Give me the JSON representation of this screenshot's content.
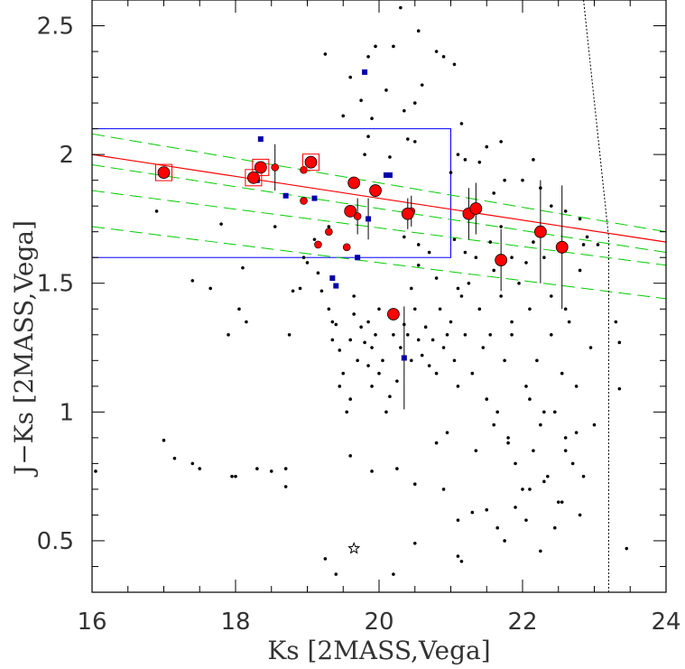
{
  "chart_data": {
    "type": "scatter",
    "title": "",
    "xlabel": "Ks [2MASS,Vega]",
    "ylabel": "J−Ks [2MASS,Vega]",
    "xlim": [
      16,
      24
    ],
    "ylim": [
      0.3,
      2.6
    ],
    "xticks": [
      16,
      18,
      20,
      22,
      24
    ],
    "xtick_labels": [
      "16",
      "18",
      "20",
      "22",
      "24"
    ],
    "yticks": [
      0.5,
      1,
      1.5,
      2,
      2.5
    ],
    "ytick_labels": [
      "0.5",
      "1",
      "1.5",
      "2",
      "2.5"
    ],
    "x_minor_step": 0.5,
    "y_minor_step": 0.1,
    "grid": false,
    "legend": "none",
    "colors": {
      "frame": "#000000",
      "field_points": "#000000",
      "red_points": "#ff0000",
      "blue_squares": "#0000aa",
      "highlight_boxes": "#ff0000",
      "selection_box": "#0000ff",
      "red_line": "#ff0000",
      "green_lines": "#00cc00",
      "limits": "#000000"
    },
    "selection_box": {
      "x0": 16,
      "x1": 21,
      "y0": 1.6,
      "y1": 2.1
    },
    "red_sequence_line": {
      "x": [
        16,
        24
      ],
      "y": [
        2.0,
        1.66
      ]
    },
    "green_dashed_lines": [
      {
        "x": [
          16,
          24
        ],
        "y": [
          2.08,
          1.7
        ]
      },
      {
        "x": [
          16,
          24
        ],
        "y": [
          1.96,
          1.62
        ]
      },
      {
        "x": [
          16,
          24
        ],
        "y": [
          1.86,
          1.57
        ]
      },
      {
        "x": [
          16,
          24
        ],
        "y": [
          1.72,
          1.44
        ]
      }
    ],
    "completeness_vertical_line": {
      "x": 23.2,
      "y": [
        0.3,
        1.68
      ]
    },
    "completeness_slanted_line": {
      "x": [
        22.85,
        23.2
      ],
      "y": [
        2.6,
        1.68
      ]
    },
    "star_marker": {
      "x": 19.65,
      "y": 0.47
    },
    "large_red_points": [
      {
        "x": 17.0,
        "y": 1.93,
        "boxed": true
      },
      {
        "x": 18.25,
        "y": 1.91,
        "boxed": true
      },
      {
        "x": 18.35,
        "y": 1.95,
        "boxed": true
      },
      {
        "x": 19.05,
        "y": 1.97,
        "boxed": true
      },
      {
        "x": 19.65,
        "y": 1.89,
        "boxed": false
      },
      {
        "x": 19.95,
        "y": 1.86,
        "boxed": false
      },
      {
        "x": 19.6,
        "y": 1.78,
        "boxed": false
      },
      {
        "x": 20.4,
        "y": 1.77,
        "boxed": false,
        "err": 0.06
      },
      {
        "x": 21.25,
        "y": 1.77,
        "boxed": false,
        "err": 0.1
      },
      {
        "x": 21.35,
        "y": 1.79,
        "boxed": false,
        "err": 0.1
      },
      {
        "x": 20.2,
        "y": 1.38,
        "boxed": false
      },
      {
        "x": 21.7,
        "y": 1.59,
        "boxed": false,
        "err": 0.12
      },
      {
        "x": 22.25,
        "y": 1.7,
        "boxed": false,
        "err": 0.2
      },
      {
        "x": 22.55,
        "y": 1.64,
        "boxed": false,
        "err": 0.24
      }
    ],
    "small_red_points": [
      {
        "x": 18.55,
        "y": 1.95,
        "err": 0.09
      },
      {
        "x": 18.95,
        "y": 1.94
      },
      {
        "x": 18.95,
        "y": 1.82
      },
      {
        "x": 19.15,
        "y": 1.65
      },
      {
        "x": 19.3,
        "y": 1.7
      },
      {
        "x": 19.55,
        "y": 1.64
      },
      {
        "x": 19.7,
        "y": 1.76,
        "err": 0.07
      },
      {
        "x": 20.45,
        "y": 1.78,
        "err": 0.06
      }
    ],
    "blue_squares": [
      {
        "x": 19.8,
        "y": 2.32
      },
      {
        "x": 18.35,
        "y": 2.06
      },
      {
        "x": 18.3,
        "y": 1.9
      },
      {
        "x": 18.7,
        "y": 1.84
      },
      {
        "x": 19.1,
        "y": 1.83
      },
      {
        "x": 20.1,
        "y": 1.92
      },
      {
        "x": 20.15,
        "y": 1.92
      },
      {
        "x": 19.85,
        "y": 1.75,
        "err": 0.08
      },
      {
        "x": 19.7,
        "y": 1.6
      },
      {
        "x": 19.35,
        "y": 1.52
      },
      {
        "x": 19.4,
        "y": 1.49
      },
      {
        "x": 20.35,
        "y": 1.21,
        "err": 0.2
      }
    ],
    "field_points": [
      [
        16.05,
        0.77
      ],
      [
        16.9,
        1.78
      ],
      [
        17.0,
        0.89
      ],
      [
        17.15,
        0.82
      ],
      [
        17.4,
        0.8
      ],
      [
        17.5,
        0.78
      ],
      [
        17.4,
        1.51
      ],
      [
        17.65,
        1.48
      ],
      [
        17.8,
        1.73
      ],
      [
        17.95,
        0.75
      ],
      [
        18.0,
        0.75
      ],
      [
        18.05,
        1.4
      ],
      [
        18.15,
        1.35
      ],
      [
        18.3,
        0.78
      ],
      [
        18.5,
        0.77
      ],
      [
        18.55,
        1.72
      ],
      [
        18.7,
        0.78
      ],
      [
        18.7,
        0.71
      ],
      [
        18.75,
        1.3
      ],
      [
        18.8,
        1.47
      ],
      [
        18.9,
        1.48
      ],
      [
        18.95,
        1.6
      ],
      [
        19.0,
        1.58
      ],
      [
        19.1,
        1.67
      ],
      [
        19.15,
        1.54
      ],
      [
        19.2,
        1.47
      ],
      [
        19.25,
        2.39
      ],
      [
        19.3,
        1.72
      ],
      [
        19.3,
        1.4
      ],
      [
        19.35,
        1.35
      ],
      [
        19.35,
        1.28
      ],
      [
        19.4,
        1.34
      ],
      [
        19.45,
        1.24
      ],
      [
        19.45,
        1.1
      ],
      [
        19.5,
        1.15
      ],
      [
        19.55,
        1.0
      ],
      [
        19.6,
        1.28
      ],
      [
        19.6,
        1.05
      ],
      [
        19.65,
        1.45
      ],
      [
        19.65,
        1.38
      ],
      [
        19.7,
        1.2
      ],
      [
        19.75,
        1.33
      ],
      [
        19.8,
        1.27
      ],
      [
        19.85,
        1.18
      ],
      [
        19.85,
        1.35
      ],
      [
        19.9,
        1.1
      ],
      [
        19.9,
        1.25
      ],
      [
        19.95,
        1.3
      ],
      [
        20.0,
        1.15
      ],
      [
        20.0,
        1.4
      ],
      [
        20.05,
        1.2
      ],
      [
        20.1,
        1.0
      ],
      [
        20.15,
        1.06
      ],
      [
        20.2,
        1.3
      ],
      [
        20.25,
        1.12
      ],
      [
        20.3,
        1.25
      ],
      [
        20.35,
        1.34
      ],
      [
        20.4,
        1.3
      ],
      [
        20.45,
        1.2
      ],
      [
        20.5,
        1.4
      ],
      [
        20.55,
        1.28
      ],
      [
        20.6,
        1.22
      ],
      [
        20.65,
        1.33
      ],
      [
        20.7,
        1.18
      ],
      [
        20.75,
        1.28
      ],
      [
        20.8,
        1.15
      ],
      [
        20.85,
        1.4
      ],
      [
        20.9,
        1.25
      ],
      [
        20.95,
        1.3
      ],
      [
        21.0,
        1.35
      ],
      [
        21.05,
        1.2
      ],
      [
        21.1,
        1.1
      ],
      [
        21.15,
        1.45
      ],
      [
        21.2,
        1.3
      ],
      [
        21.25,
        1.5
      ],
      [
        21.3,
        1.15
      ],
      [
        21.35,
        1.6
      ],
      [
        21.4,
        1.4
      ],
      [
        21.45,
        1.25
      ],
      [
        21.5,
        1.05
      ],
      [
        21.55,
        1.3
      ],
      [
        21.6,
        1.55
      ],
      [
        21.65,
        1.0
      ],
      [
        21.7,
        1.45
      ],
      [
        21.75,
        1.2
      ],
      [
        21.8,
        0.9
      ],
      [
        21.85,
        1.35
      ],
      [
        21.9,
        0.8
      ],
      [
        21.95,
        1.5
      ],
      [
        22.0,
        0.7
      ],
      [
        22.05,
        1.1
      ],
      [
        22.1,
        1.4
      ],
      [
        22.15,
        0.85
      ],
      [
        22.2,
        1.2
      ],
      [
        22.25,
        0.95
      ],
      [
        22.3,
        1.6
      ],
      [
        22.35,
        0.75
      ],
      [
        22.4,
        1.3
      ],
      [
        22.45,
        1.0
      ],
      [
        22.5,
        0.65
      ],
      [
        22.55,
        1.15
      ],
      [
        22.6,
        0.9
      ],
      [
        22.65,
        1.35
      ],
      [
        22.7,
        0.8
      ],
      [
        22.75,
        1.1
      ],
      [
        22.8,
        1.55
      ],
      [
        22.85,
        0.75
      ],
      [
        22.9,
        1.68
      ],
      [
        22.95,
        1.25
      ],
      [
        23.0,
        0.95
      ],
      [
        23.05,
        1.65
      ],
      [
        23.3,
        1.35
      ],
      [
        23.35,
        1.27
      ],
      [
        23.35,
        1.09
      ],
      [
        23.45,
        0.47
      ],
      [
        20.3,
        2.57
      ],
      [
        20.55,
        2.48
      ],
      [
        20.8,
        2.4
      ],
      [
        20.9,
        2.38
      ],
      [
        21.05,
        2.35
      ],
      [
        21.15,
        2.12
      ],
      [
        20.5,
        2.2
      ],
      [
        20.6,
        2.27
      ],
      [
        20.2,
        2.42
      ],
      [
        19.95,
        2.42
      ],
      [
        19.85,
        2.38
      ],
      [
        19.6,
        2.3
      ],
      [
        19.75,
        2.21
      ],
      [
        19.9,
        2.14
      ],
      [
        20.1,
        2.25
      ],
      [
        20.35,
        2.17
      ],
      [
        20.4,
        2.06
      ],
      [
        20.5,
        2.05
      ],
      [
        21.1,
        2.0
      ],
      [
        21.2,
        1.98
      ],
      [
        21.0,
        1.93
      ],
      [
        21.4,
        1.97
      ],
      [
        21.6,
        1.85
      ],
      [
        21.75,
        1.9
      ],
      [
        21.7,
        2.05
      ],
      [
        21.5,
        2.03
      ],
      [
        22.0,
        1.9
      ],
      [
        22.15,
        1.98
      ],
      [
        22.25,
        1.87
      ],
      [
        22.4,
        1.8
      ],
      [
        22.6,
        1.78
      ],
      [
        22.8,
        1.75
      ],
      [
        22.85,
        1.65
      ],
      [
        19.5,
        2.15
      ],
      [
        19.8,
        2.0
      ],
      [
        19.85,
        2.07
      ],
      [
        20.15,
        1.99
      ],
      [
        20.35,
        1.68
      ],
      [
        20.55,
        1.65
      ],
      [
        20.7,
        1.62
      ],
      [
        20.55,
        1.57
      ],
      [
        21.05,
        1.67
      ],
      [
        21.2,
        1.62
      ],
      [
        21.55,
        1.66
      ],
      [
        21.7,
        1.72
      ],
      [
        21.85,
        1.6
      ],
      [
        22.05,
        1.58
      ],
      [
        22.15,
        1.66
      ],
      [
        22.4,
        1.45
      ],
      [
        22.6,
        1.4
      ],
      [
        21.85,
        1.3
      ],
      [
        21.1,
        1.48
      ],
      [
        20.8,
        1.52
      ],
      [
        20.45,
        1.48
      ],
      [
        19.6,
        0.83
      ],
      [
        19.9,
        0.77
      ],
      [
        20.25,
        0.78
      ],
      [
        20.5,
        0.72
      ],
      [
        20.9,
        0.7
      ],
      [
        21.1,
        0.58
      ],
      [
        21.3,
        0.61
      ],
      [
        21.5,
        0.62
      ],
      [
        21.65,
        0.55
      ],
      [
        21.75,
        0.5
      ],
      [
        22.05,
        0.58
      ],
      [
        22.25,
        0.46
      ],
      [
        22.55,
        0.65
      ],
      [
        22.8,
        0.6
      ],
      [
        21.9,
        0.63
      ],
      [
        22.1,
        0.7
      ],
      [
        22.3,
        0.73
      ],
      [
        22.45,
        0.55
      ],
      [
        20.2,
        0.37
      ],
      [
        19.4,
        0.37
      ],
      [
        19.25,
        0.43
      ],
      [
        20.5,
        0.49
      ],
      [
        21.1,
        0.44
      ],
      [
        21.15,
        0.42
      ],
      [
        20.8,
        0.88
      ],
      [
        20.95,
        0.92
      ],
      [
        21.35,
        0.85
      ],
      [
        21.6,
        0.95
      ],
      [
        21.8,
        0.88
      ],
      [
        22.1,
        1.05
      ],
      [
        22.3,
        1.0
      ],
      [
        22.6,
        0.85
      ],
      [
        22.75,
        0.92
      ],
      [
        18.1,
        1.56
      ],
      [
        17.9,
        1.3
      ]
    ]
  }
}
